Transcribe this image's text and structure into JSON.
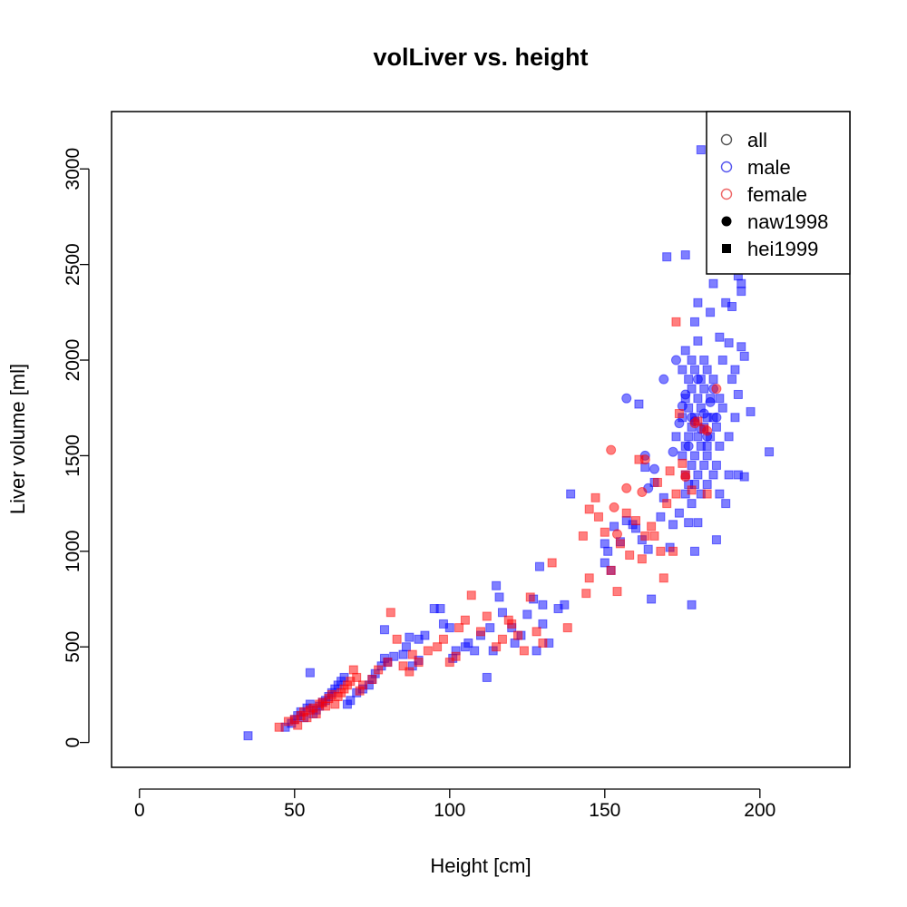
{
  "chart_data": {
    "type": "scatter",
    "title": "volLiver vs. height",
    "xlabel": "Height [cm]",
    "ylabel": "Liver volume [ml]",
    "xlim": [
      -9,
      229
    ],
    "ylim": [
      -130,
      3300
    ],
    "x_ticks": [
      0,
      50,
      100,
      150,
      200
    ],
    "y_ticks": [
      0,
      500,
      1000,
      1500,
      2000,
      2500,
      3000
    ],
    "grid": false,
    "legend_position": "top-right",
    "legend": [
      {
        "label": "all",
        "marker": "circle-open",
        "color": "#555555"
      },
      {
        "label": "male",
        "marker": "circle-open",
        "color": "#5555ee"
      },
      {
        "label": "female",
        "marker": "circle-open",
        "color": "#ee6666"
      },
      {
        "label": "naw1998",
        "marker": "circle-filled",
        "color": "#000000"
      },
      {
        "label": "hei1999",
        "marker": "square-filled",
        "color": "#000000"
      }
    ],
    "series": [
      {
        "sex": "male",
        "study": "hei1999",
        "marker": "square",
        "color": "#0000ff",
        "points": [
          [
            35,
            35
          ],
          [
            47,
            80
          ],
          [
            49,
            100
          ],
          [
            50,
            120
          ],
          [
            51,
            140
          ],
          [
            52,
            160
          ],
          [
            53,
            130
          ],
          [
            54,
            180
          ],
          [
            55,
            200
          ],
          [
            55,
            365
          ],
          [
            56,
            150
          ],
          [
            57,
            170
          ],
          [
            58,
            190
          ],
          [
            59,
            210
          ],
          [
            60,
            220
          ],
          [
            61,
            240
          ],
          [
            62,
            260
          ],
          [
            63,
            280
          ],
          [
            64,
            300
          ],
          [
            65,
            320
          ],
          [
            66,
            340
          ],
          [
            67,
            200
          ],
          [
            68,
            220
          ],
          [
            70,
            260
          ],
          [
            72,
            280
          ],
          [
            74,
            300
          ],
          [
            75,
            330
          ],
          [
            76,
            360
          ],
          [
            78,
            400
          ],
          [
            79,
            440
          ],
          [
            79,
            590
          ],
          [
            80,
            420
          ],
          [
            82,
            450
          ],
          [
            85,
            460
          ],
          [
            86,
            500
          ],
          [
            87,
            550
          ],
          [
            88,
            400
          ],
          [
            90,
            430
          ],
          [
            90,
            540
          ],
          [
            92,
            560
          ],
          [
            95,
            700
          ],
          [
            97,
            700
          ],
          [
            98,
            620
          ],
          [
            100,
            600
          ],
          [
            101,
            440
          ],
          [
            102,
            480
          ],
          [
            105,
            500
          ],
          [
            106,
            520
          ],
          [
            108,
            480
          ],
          [
            110,
            560
          ],
          [
            112,
            340
          ],
          [
            113,
            600
          ],
          [
            114,
            480
          ],
          [
            115,
            820
          ],
          [
            116,
            760
          ],
          [
            117,
            680
          ],
          [
            120,
            600
          ],
          [
            121,
            520
          ],
          [
            123,
            560
          ],
          [
            125,
            670
          ],
          [
            127,
            750
          ],
          [
            128,
            480
          ],
          [
            129,
            920
          ],
          [
            130,
            620
          ],
          [
            130,
            720
          ],
          [
            132,
            520
          ],
          [
            135,
            700
          ],
          [
            137,
            720
          ],
          [
            139,
            1300
          ],
          [
            150,
            940
          ],
          [
            150,
            1040
          ],
          [
            151,
            1000
          ],
          [
            152,
            900
          ],
          [
            153,
            1130
          ],
          [
            155,
            1050
          ],
          [
            157,
            1160
          ],
          [
            159,
            1140
          ],
          [
            160,
            1120
          ],
          [
            161,
            1770
          ],
          [
            162,
            1060
          ],
          [
            163,
            1440
          ],
          [
            164,
            1010
          ],
          [
            165,
            750
          ],
          [
            166,
            1360
          ],
          [
            168,
            1180
          ],
          [
            169,
            1280
          ],
          [
            170,
            2540
          ],
          [
            171,
            1020
          ],
          [
            172,
            1140
          ],
          [
            173,
            1600
          ],
          [
            174,
            1200
          ],
          [
            175,
            1500
          ],
          [
            175,
            1700
          ],
          [
            175,
            1950
          ],
          [
            176,
            1300
          ],
          [
            176,
            1400
          ],
          [
            176,
            1550
          ],
          [
            176,
            1800
          ],
          [
            176,
            2050
          ],
          [
            176,
            2550
          ],
          [
            177,
            1150
          ],
          [
            177,
            1350
          ],
          [
            177,
            1600
          ],
          [
            177,
            1750
          ],
          [
            177,
            1900
          ],
          [
            178,
            1250
          ],
          [
            178,
            1450
          ],
          [
            178,
            1650
          ],
          [
            178,
            1850
          ],
          [
            178,
            2000
          ],
          [
            178,
            720
          ],
          [
            179,
            1000
          ],
          [
            179,
            1350
          ],
          [
            179,
            1500
          ],
          [
            179,
            1700
          ],
          [
            179,
            1950
          ],
          [
            179,
            2200
          ],
          [
            180,
            1150
          ],
          [
            180,
            1400
          ],
          [
            180,
            1600
          ],
          [
            180,
            1800
          ],
          [
            180,
            2100
          ],
          [
            180,
            2300
          ],
          [
            181,
            3100
          ],
          [
            181,
            1300
          ],
          [
            181,
            1550
          ],
          [
            181,
            1750
          ],
          [
            181,
            1900
          ],
          [
            182,
            1450
          ],
          [
            182,
            1650
          ],
          [
            182,
            1850
          ],
          [
            182,
            2000
          ],
          [
            183,
            1350
          ],
          [
            183,
            1550
          ],
          [
            183,
            1700
          ],
          [
            183,
            1950
          ],
          [
            183,
            1500
          ],
          [
            184,
            1600
          ],
          [
            184,
            1800
          ],
          [
            184,
            2250
          ],
          [
            185,
            1400
          ],
          [
            185,
            1700
          ],
          [
            185,
            1900
          ],
          [
            185,
            2400
          ],
          [
            186,
            1060
          ],
          [
            186,
            1450
          ],
          [
            186,
            1650
          ],
          [
            187,
            1300
          ],
          [
            187,
            1550
          ],
          [
            187,
            1800
          ],
          [
            187,
            2120
          ],
          [
            188,
            1750
          ],
          [
            188,
            2000
          ],
          [
            189,
            2300
          ],
          [
            189,
            1250
          ],
          [
            190,
            1400
          ],
          [
            190,
            1600
          ],
          [
            190,
            2090
          ],
          [
            191,
            1900
          ],
          [
            191,
            2280
          ],
          [
            192,
            1700
          ],
          [
            192,
            1950
          ],
          [
            193,
            1820
          ],
          [
            193,
            2440
          ],
          [
            193,
            1400
          ],
          [
            194,
            2400
          ],
          [
            194,
            2360
          ],
          [
            194,
            2070
          ],
          [
            195,
            1390
          ],
          [
            195,
            2020
          ],
          [
            197,
            1730
          ],
          [
            203,
            1520
          ]
        ]
      },
      {
        "sex": "male",
        "study": "naw1998",
        "marker": "circle",
        "color": "#0000ff",
        "points": [
          [
            157,
            1800
          ],
          [
            163,
            1500
          ],
          [
            164,
            1330
          ],
          [
            166,
            1430
          ],
          [
            169,
            1900
          ],
          [
            172,
            1520
          ],
          [
            173,
            2000
          ],
          [
            174,
            1670
          ],
          [
            175,
            1760
          ],
          [
            176,
            1820
          ],
          [
            177,
            1550
          ],
          [
            178,
            1700
          ],
          [
            179,
            1680
          ],
          [
            180,
            1900
          ],
          [
            181,
            1640
          ],
          [
            182,
            1720
          ],
          [
            183,
            1600
          ],
          [
            184,
            1780
          ],
          [
            185,
            1850
          ],
          [
            186,
            1700
          ]
        ]
      },
      {
        "sex": "female",
        "study": "hei1999",
        "marker": "square",
        "color": "#ff0000",
        "points": [
          [
            45,
            80
          ],
          [
            48,
            110
          ],
          [
            50,
            120
          ],
          [
            51,
            90
          ],
          [
            52,
            140
          ],
          [
            53,
            160
          ],
          [
            54,
            130
          ],
          [
            55,
            170
          ],
          [
            56,
            180
          ],
          [
            57,
            150
          ],
          [
            58,
            200
          ],
          [
            59,
            210
          ],
          [
            60,
            190
          ],
          [
            61,
            230
          ],
          [
            62,
            250
          ],
          [
            63,
            200
          ],
          [
            64,
            240
          ],
          [
            65,
            260
          ],
          [
            66,
            280
          ],
          [
            67,
            300
          ],
          [
            68,
            320
          ],
          [
            69,
            380
          ],
          [
            70,
            340
          ],
          [
            71,
            270
          ],
          [
            72,
            300
          ],
          [
            75,
            330
          ],
          [
            77,
            380
          ],
          [
            80,
            420
          ],
          [
            81,
            680
          ],
          [
            83,
            540
          ],
          [
            85,
            400
          ],
          [
            87,
            370
          ],
          [
            88,
            460
          ],
          [
            90,
            420
          ],
          [
            93,
            480
          ],
          [
            96,
            500
          ],
          [
            98,
            540
          ],
          [
            100,
            420
          ],
          [
            102,
            450
          ],
          [
            103,
            600
          ],
          [
            105,
            640
          ],
          [
            107,
            770
          ],
          [
            110,
            580
          ],
          [
            112,
            660
          ],
          [
            115,
            500
          ],
          [
            117,
            540
          ],
          [
            119,
            640
          ],
          [
            120,
            620
          ],
          [
            122,
            560
          ],
          [
            124,
            480
          ],
          [
            126,
            760
          ],
          [
            128,
            580
          ],
          [
            130,
            520
          ],
          [
            133,
            940
          ],
          [
            138,
            600
          ],
          [
            143,
            1080
          ],
          [
            144,
            780
          ],
          [
            145,
            860
          ],
          [
            145,
            1220
          ],
          [
            147,
            1280
          ],
          [
            148,
            1180
          ],
          [
            150,
            1100
          ],
          [
            152,
            900
          ],
          [
            154,
            790
          ],
          [
            155,
            1040
          ],
          [
            157,
            1200
          ],
          [
            158,
            980
          ],
          [
            160,
            1160
          ],
          [
            161,
            1480
          ],
          [
            162,
            960
          ],
          [
            163,
            1080
          ],
          [
            165,
            1130
          ],
          [
            166,
            1080
          ],
          [
            167,
            1360
          ],
          [
            168,
            1000
          ],
          [
            169,
            860
          ],
          [
            170,
            1250
          ],
          [
            171,
            1420
          ],
          [
            172,
            1000
          ],
          [
            173,
            2200
          ],
          [
            173,
            1300
          ],
          [
            174,
            1720
          ],
          [
            175,
            1460
          ],
          [
            176,
            1400
          ],
          [
            178,
            1320
          ],
          [
            180,
            1680
          ],
          [
            182,
            1640
          ],
          [
            183,
            1300
          ]
        ]
      },
      {
        "sex": "female",
        "study": "naw1998",
        "marker": "circle",
        "color": "#ff0000",
        "points": [
          [
            152,
            1530
          ],
          [
            153,
            1230
          ],
          [
            154,
            1090
          ],
          [
            157,
            1330
          ],
          [
            162,
            1310
          ],
          [
            163,
            1480
          ],
          [
            176,
            1390
          ],
          [
            179,
            1670
          ],
          [
            183,
            1630
          ],
          [
            186,
            1850
          ]
        ]
      }
    ]
  }
}
